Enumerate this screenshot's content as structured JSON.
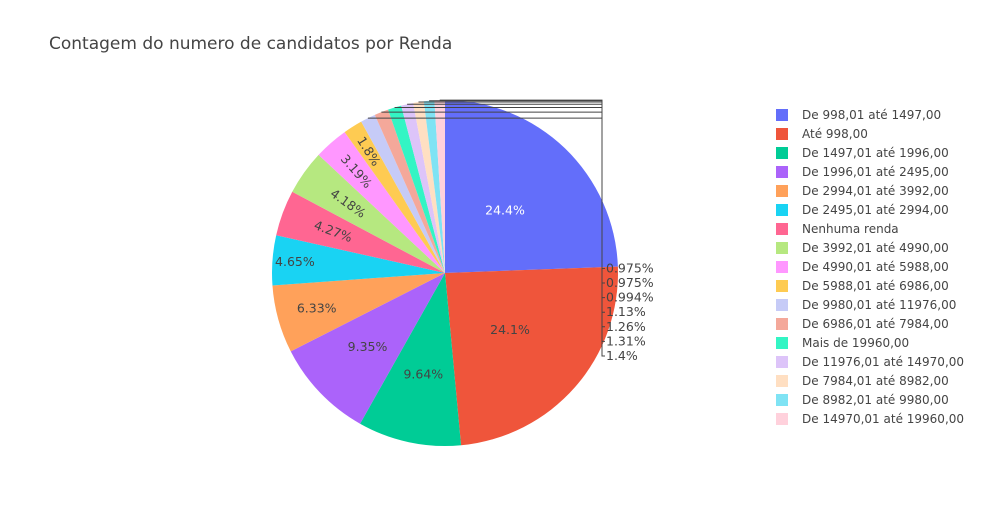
{
  "chart_data": {
    "type": "pie",
    "title": "Contagem do numero de candidatos por Renda",
    "categories": [
      "De 998,01 até 1497,00",
      "Até 998,00",
      "De 1497,01 até 1996,00",
      "De 1996,01 até 2495,00",
      "De 2994,01 até 3992,00",
      "De 2495,01 até 2994,00",
      "Nenhuma renda",
      "De 3992,01 até 4990,00",
      "De 4990,01 até 5988,00",
      "De 5988,01 até 6986,00",
      "De 9980,01 até 11976,00",
      "De 6986,01 até 7984,00",
      "Mais de 19960,00",
      "De 11976,01 até 14970,00",
      "De 7984,01 até 8982,00",
      "De 8982,01 até 9980,00",
      "De 14970,01 até 19960,00"
    ],
    "values": [
      24.4,
      24.1,
      9.64,
      9.35,
      6.33,
      4.65,
      4.27,
      4.18,
      3.19,
      1.8,
      1.4,
      1.31,
      1.26,
      1.13,
      0.994,
      0.975,
      0.975
    ],
    "labels": [
      "24.4%",
      "24.1%",
      "9.64%",
      "9.35%",
      "6.33%",
      "4.65%",
      "4.27%",
      "4.18%",
      "3.19%",
      "1.8%",
      "1.4%",
      "1.31%",
      "1.26%",
      "1.13%",
      "0.994%",
      "0.975%",
      "0.975%"
    ],
    "colors": [
      "#636efa",
      "#EF553B",
      "#00cc96",
      "#ab63fa",
      "#FFA15A",
      "#19d3f3",
      "#FF6692",
      "#B6E880",
      "#FF97FF",
      "#FECB52",
      "#c6cbf7",
      "#F4A89A",
      "#33F5C4",
      "#DDC4F9",
      "#FFDFC2",
      "#7FE3F4",
      "#FFD1DC"
    ],
    "legend_position": "right"
  }
}
